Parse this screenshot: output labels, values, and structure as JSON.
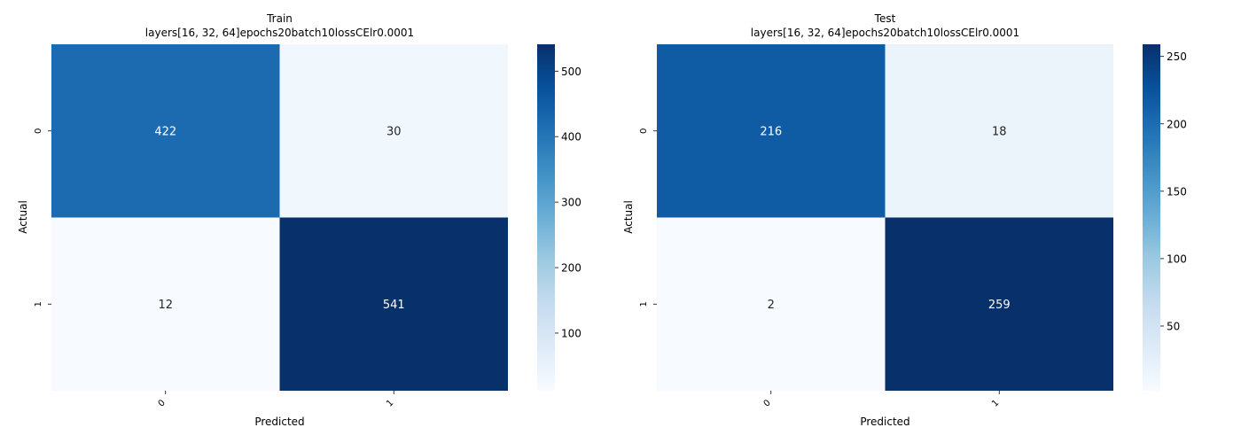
{
  "chart_data": [
    {
      "type": "heatmap",
      "title": "Train",
      "subtitle": "layers[16, 32, 64]epochs20batch10lossCElr0.0001",
      "xlabel": "Predicted",
      "ylabel": "Actual",
      "x_categories": [
        "0",
        "1"
      ],
      "y_categories": [
        "0",
        "1"
      ],
      "values": [
        [
          422,
          30
        ],
        [
          12,
          541
        ]
      ],
      "colormap": "Blues",
      "colorbar": {
        "min": 12,
        "max": 541,
        "ticks": [
          100,
          200,
          300,
          400,
          500
        ]
      }
    },
    {
      "type": "heatmap",
      "title": "Test",
      "subtitle": "layers[16, 32, 64]epochs20batch10lossCElr0.0001",
      "xlabel": "Predicted",
      "ylabel": "Actual",
      "x_categories": [
        "0",
        "1"
      ],
      "y_categories": [
        "0",
        "1"
      ],
      "values": [
        [
          216,
          18
        ],
        [
          2,
          259
        ]
      ],
      "colormap": "Blues",
      "colorbar": {
        "min": 2,
        "max": 259,
        "ticks": [
          50,
          100,
          150,
          200,
          250
        ]
      }
    }
  ]
}
